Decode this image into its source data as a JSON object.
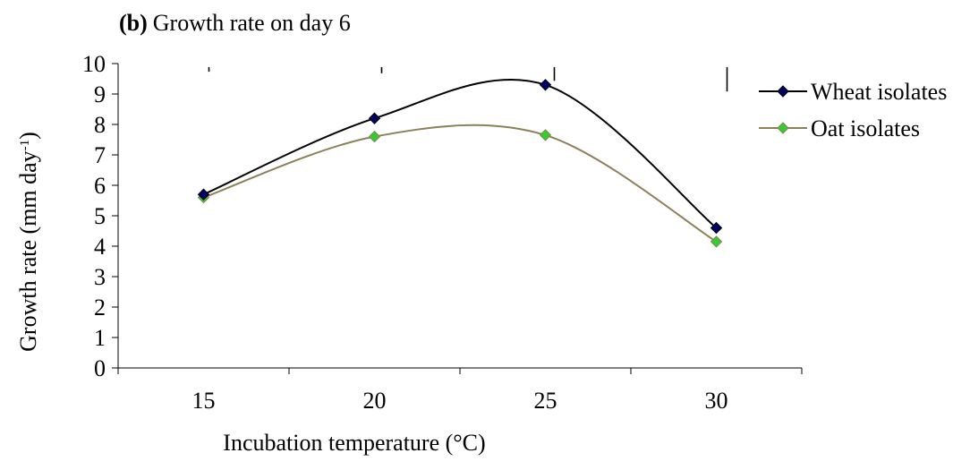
{
  "chart_data": {
    "type": "line",
    "title_bold": "(b)",
    "title_rest": "Growth rate on day 6",
    "xlabel": "Incubation temperature (°C)",
    "ylabel_main": "Growth rate (mm day",
    "ylabel_sup": "-1",
    "ylabel_close": ")",
    "categories": [
      "15",
      "20",
      "25",
      "30"
    ],
    "y_ticks": [
      "0",
      "1",
      "2",
      "3",
      "4",
      "5",
      "6",
      "7",
      "8",
      "9",
      "10"
    ],
    "ylim": [
      0,
      10
    ],
    "grid": false,
    "smooth": true,
    "legend_position": "right",
    "series": [
      {
        "name": "Wheat isolates",
        "values": [
          5.7,
          8.2,
          9.3,
          4.6
        ],
        "color": "#000000",
        "marker_fill": "#000066",
        "error": [
          0.15,
          0.2,
          0.45,
          0.8
        ]
      },
      {
        "name": "Oat isolates",
        "values": [
          5.6,
          7.6,
          7.65,
          4.15
        ],
        "color": "#8c8058",
        "marker_fill": "#33cc33"
      }
    ]
  }
}
